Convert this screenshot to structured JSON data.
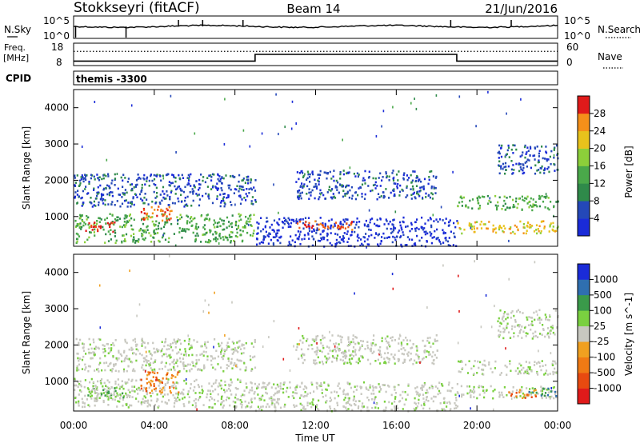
{
  "header": {
    "station": "Stokkseyri (fitACF)",
    "beam": "Beam 14",
    "date": "21/Jun/2016"
  },
  "top_panels": {
    "nsky_label": "N.Sky",
    "nsky_ticks": [
      "10^5",
      "10^0"
    ],
    "nsearch_label": "N.Search",
    "nsearch_ticks": [
      "10^5",
      "10^0"
    ],
    "freq_label_1": "Freq.",
    "freq_label_2": "[MHz]",
    "freq_ticks": [
      "18",
      "8"
    ],
    "nave_label": "Nave",
    "nave_ticks": [
      "60",
      "0"
    ],
    "cpid_label": "CPID",
    "cpid_value": "themis -3300"
  },
  "x_axis": {
    "label": "Time UT",
    "ticks": [
      "00:00",
      "04:00",
      "08:00",
      "12:00",
      "16:00",
      "20:00",
      "00:00"
    ]
  },
  "colors": {
    "power_scale": [
      "#1a2bd8",
      "#2448b8",
      "#2f8a4a",
      "#4aa84a",
      "#8ccf3a",
      "#e8c21c",
      "#f5901a",
      "#f05a14",
      "#e01a1a"
    ],
    "velocity_scale": [
      "#1a2bd8",
      "#2f6fb0",
      "#3a9a4a",
      "#7ad040",
      "#c8c8c0",
      "#c8c8c0",
      "#f0a020",
      "#f07a14",
      "#e84a10",
      "#e01a1a"
    ],
    "ground_scatter": "#c8c8c0"
  },
  "chart_data": [
    {
      "type": "line",
      "name": "N.Sky / N.Search",
      "ylabel": "N.Sky",
      "scale": "log",
      "ylim_exponent": [
        0,
        5
      ],
      "x": [
        "00:00",
        "24:00"
      ]
    },
    {
      "type": "line",
      "name": "Freq / Nave",
      "ylabel": "Freq. [MHz]",
      "freq_ylim": [
        8,
        18
      ],
      "nave_ylim": [
        0,
        60
      ],
      "freq_segments_mhz": [
        {
          "from": 0.0,
          "to": 9.0,
          "value": 10
        },
        {
          "from": 9.0,
          "to": 19.0,
          "value": 13
        },
        {
          "from": 19.0,
          "to": 24.0,
          "value": 10
        }
      ],
      "nave_level": 38
    },
    {
      "type": "heatmap",
      "title": "Power",
      "xlabel": "Time UT",
      "ylabel": "Slant Range [km]",
      "colorbar_label": "Power [dB]",
      "colorbar_ticks": [
        "4",
        "8",
        "12",
        "16",
        "20",
        "24",
        "28"
      ],
      "xlim_hours": [
        0,
        24
      ],
      "ylim_km": [
        180,
        4500
      ],
      "y_ticks": [
        "1000",
        "2000",
        "3000",
        "4000"
      ],
      "x_ticks": [
        "00:00",
        "04:00",
        "08:00",
        "12:00",
        "16:00",
        "20:00",
        "00:00"
      ],
      "regions": [
        {
          "t0": 0.0,
          "t1": 9.0,
          "r0": 300,
          "r1": 1100,
          "level": 3
        },
        {
          "t0": 0.5,
          "t1": 2.0,
          "r0": 600,
          "r1": 900,
          "level": 8
        },
        {
          "t0": 3.3,
          "t1": 5.0,
          "r0": 900,
          "r1": 1300,
          "level": 7
        },
        {
          "t0": 0.0,
          "t1": 9.0,
          "r0": 1300,
          "r1": 2200,
          "level": 1
        },
        {
          "t0": 9.0,
          "t1": 19.0,
          "r0": 200,
          "r1": 1000,
          "level": 0
        },
        {
          "t0": 11.0,
          "t1": 13.8,
          "r0": 650,
          "r1": 900,
          "level": 7
        },
        {
          "t0": 11.0,
          "t1": 18.0,
          "r0": 1500,
          "r1": 2300,
          "level": 1
        },
        {
          "t0": 19.0,
          "t1": 24.0,
          "r0": 550,
          "r1": 900,
          "level": 5
        },
        {
          "t0": 19.0,
          "t1": 24.0,
          "r0": 1200,
          "r1": 1600,
          "level": 3
        },
        {
          "t0": 21.0,
          "t1": 24.0,
          "r0": 2200,
          "r1": 3000,
          "level": 1
        }
      ]
    },
    {
      "type": "heatmap",
      "title": "Velocity",
      "xlabel": "Time UT",
      "ylabel": "Slant Range [km]",
      "colorbar_label": "Velocity [m s^-1]",
      "colorbar_ticks": [
        "1000",
        "500",
        "100",
        "25",
        "-25",
        "-100",
        "-500",
        "-1000"
      ],
      "xlim_hours": [
        0,
        24
      ],
      "ylim_km": [
        180,
        4500
      ],
      "y_ticks": [
        "1000",
        "2000",
        "3000",
        "4000"
      ],
      "x_ticks": [
        "00:00",
        "04:00",
        "08:00",
        "12:00",
        "16:00",
        "20:00",
        "00:00"
      ],
      "regions": [
        {
          "t0": 0.0,
          "t1": 9.0,
          "r0": 300,
          "r1": 1100,
          "level": 4
        },
        {
          "t0": 0.5,
          "t1": 2.5,
          "r0": 550,
          "r1": 900,
          "level": 3
        },
        {
          "t0": 3.3,
          "t1": 5.2,
          "r0": 700,
          "r1": 1300,
          "level": 7
        },
        {
          "t0": 0.0,
          "t1": 9.0,
          "r0": 1300,
          "r1": 2200,
          "level": 4
        },
        {
          "t0": 9.0,
          "t1": 19.0,
          "r0": 200,
          "r1": 1000,
          "level": 4
        },
        {
          "t0": 11.0,
          "t1": 18.0,
          "r0": 1500,
          "r1": 2300,
          "level": 4
        },
        {
          "t0": 19.0,
          "t1": 24.0,
          "r0": 550,
          "r1": 900,
          "level": 4
        },
        {
          "t0": 22.5,
          "t1": 24.0,
          "r0": 600,
          "r1": 850,
          "level": 2
        },
        {
          "t0": 21.5,
          "t1": 23.0,
          "r0": 550,
          "r1": 800,
          "level": 7
        },
        {
          "t0": 19.0,
          "t1": 24.0,
          "r0": 1200,
          "r1": 1600,
          "level": 4
        },
        {
          "t0": 21.0,
          "t1": 24.0,
          "r0": 2200,
          "r1": 3000,
          "level": 4
        }
      ]
    }
  ]
}
